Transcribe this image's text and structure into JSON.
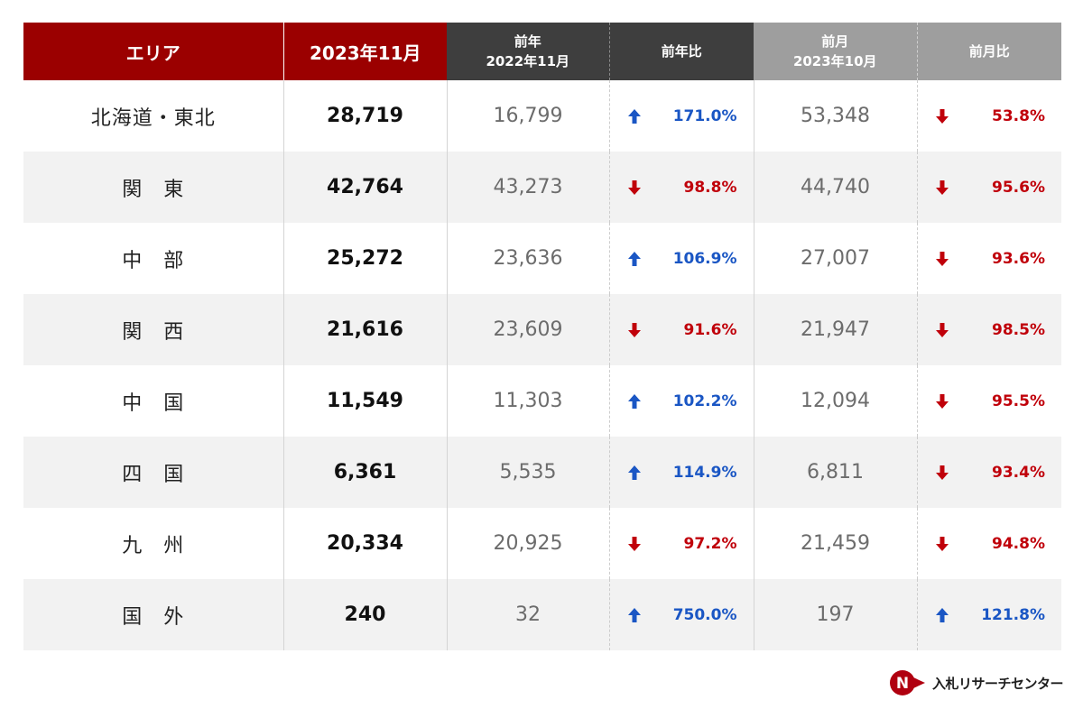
{
  "header": {
    "area": "エリア",
    "current": "2023年11月",
    "prev_year_title": "前年",
    "prev_year_sub": "2022年11月",
    "prev_year_ratio": "前年比",
    "prev_month_title": "前月",
    "prev_month_sub": "2023年10月",
    "prev_month_ratio": "前月比"
  },
  "rows": [
    {
      "area": "北海道・東北",
      "current": "28,719",
      "prev_year": "16,799",
      "py_ratio": "171.0%",
      "py_dir": "up",
      "prev_month": "53,348",
      "pm_ratio": "53.8%",
      "pm_dir": "down"
    },
    {
      "area": "関　東",
      "current": "42,764",
      "prev_year": "43,273",
      "py_ratio": "98.8%",
      "py_dir": "down",
      "prev_month": "44,740",
      "pm_ratio": "95.6%",
      "pm_dir": "down"
    },
    {
      "area": "中　部",
      "current": "25,272",
      "prev_year": "23,636",
      "py_ratio": "106.9%",
      "py_dir": "up",
      "prev_month": "27,007",
      "pm_ratio": "93.6%",
      "pm_dir": "down"
    },
    {
      "area": "関　西",
      "current": "21,616",
      "prev_year": "23,609",
      "py_ratio": "91.6%",
      "py_dir": "down",
      "prev_month": "21,947",
      "pm_ratio": "98.5%",
      "pm_dir": "down"
    },
    {
      "area": "中　国",
      "current": "11,549",
      "prev_year": "11,303",
      "py_ratio": "102.2%",
      "py_dir": "up",
      "prev_month": "12,094",
      "pm_ratio": "95.5%",
      "pm_dir": "down"
    },
    {
      "area": "四　国",
      "current": "6,361",
      "prev_year": "5,535",
      "py_ratio": "114.9%",
      "py_dir": "up",
      "prev_month": "6,811",
      "pm_ratio": "93.4%",
      "pm_dir": "down"
    },
    {
      "area": "九　州",
      "current": "20,334",
      "prev_year": "20,925",
      "py_ratio": "97.2%",
      "py_dir": "down",
      "prev_month": "21,459",
      "pm_ratio": "94.8%",
      "pm_dir": "down"
    },
    {
      "area": "国　外",
      "current": "240",
      "prev_year": "32",
      "py_ratio": "750.0%",
      "py_dir": "up",
      "prev_month": "197",
      "pm_ratio": "121.8%",
      "pm_dir": "up"
    }
  ],
  "colors": {
    "header_red": "#9b0000",
    "header_dark": "#3e3e3e",
    "header_gray": "#9e9e9e",
    "up_blue": "#1a56c4",
    "down_red": "#c0000a",
    "stripe": "#f2f2f2"
  },
  "icons": {
    "up": "arrow-up-icon",
    "down": "arrow-down-icon"
  },
  "logo": {
    "text": "入札リサーチセンター",
    "mark_letter": "N"
  }
}
